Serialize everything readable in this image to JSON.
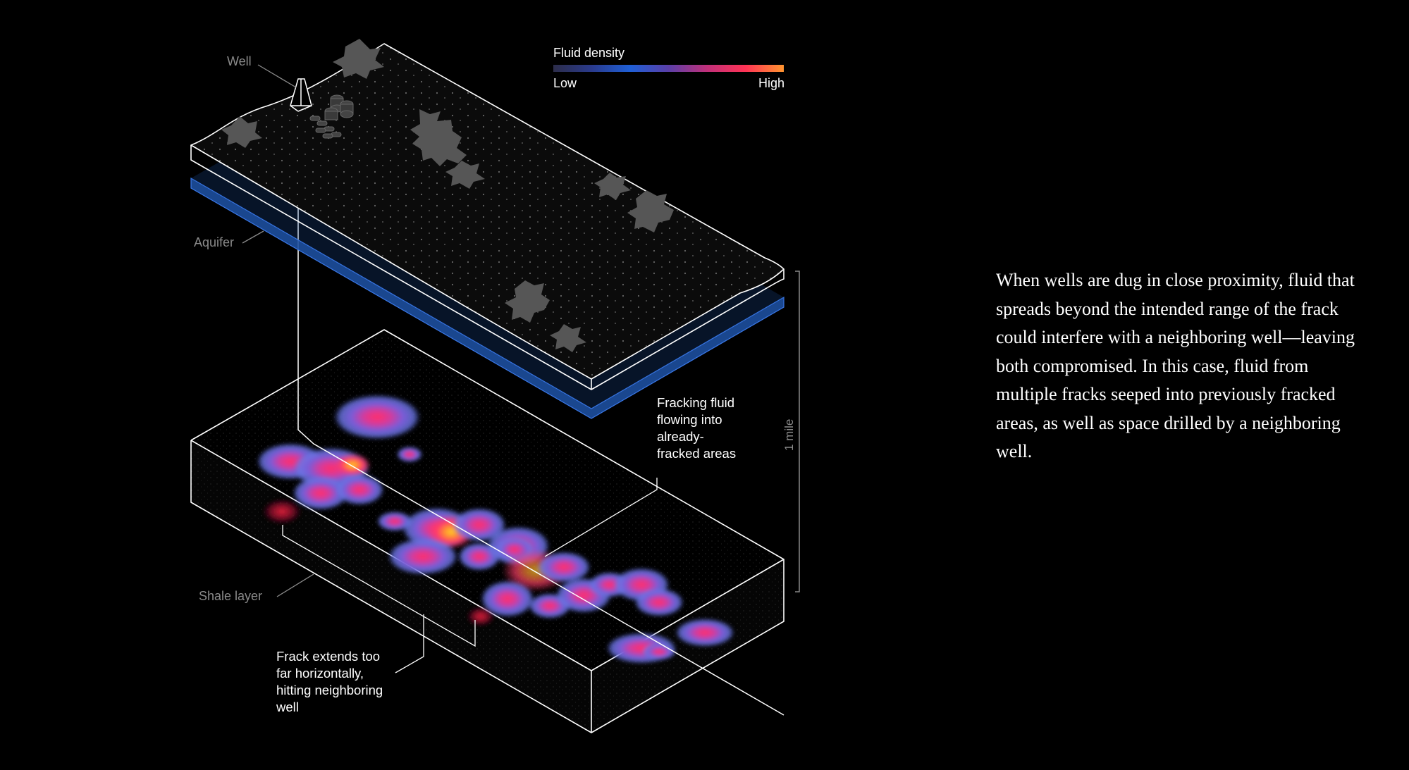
{
  "labels": {
    "well": "Well",
    "aquifer": "Aquifer",
    "shale_layer": "Shale layer",
    "scale": "1 mile"
  },
  "legend": {
    "title": "Fluid density",
    "low": "Low",
    "high": "High",
    "gradient_colors": [
      "#2c2d4a",
      "#2a3a8c",
      "#1f5fd6",
      "#5a3fa8",
      "#c0307a",
      "#ff3355",
      "#ff9530"
    ]
  },
  "annotations": {
    "fracking_fluid": [
      "Fracking fluid",
      "flowing into",
      "already-",
      "fracked areas"
    ],
    "frack_extends": [
      "Frack extends too",
      "far horizontally,",
      "hitting neighboring",
      "well"
    ]
  },
  "paragraph": "When wells are dug in close proximity, fluid that spreads beyond the intended range of the frack could interfere with a neighboring well—leaving both compromised. In this case, fluid from multiple fracks seeped into previously fracked areas, as well as space drilled by a neighboring well.",
  "colors": {
    "background": "#000000",
    "aquifer": "#1d4f9e",
    "outline": "#ffffff",
    "label_gray": "#8a8a8a",
    "tree": "#555555"
  }
}
